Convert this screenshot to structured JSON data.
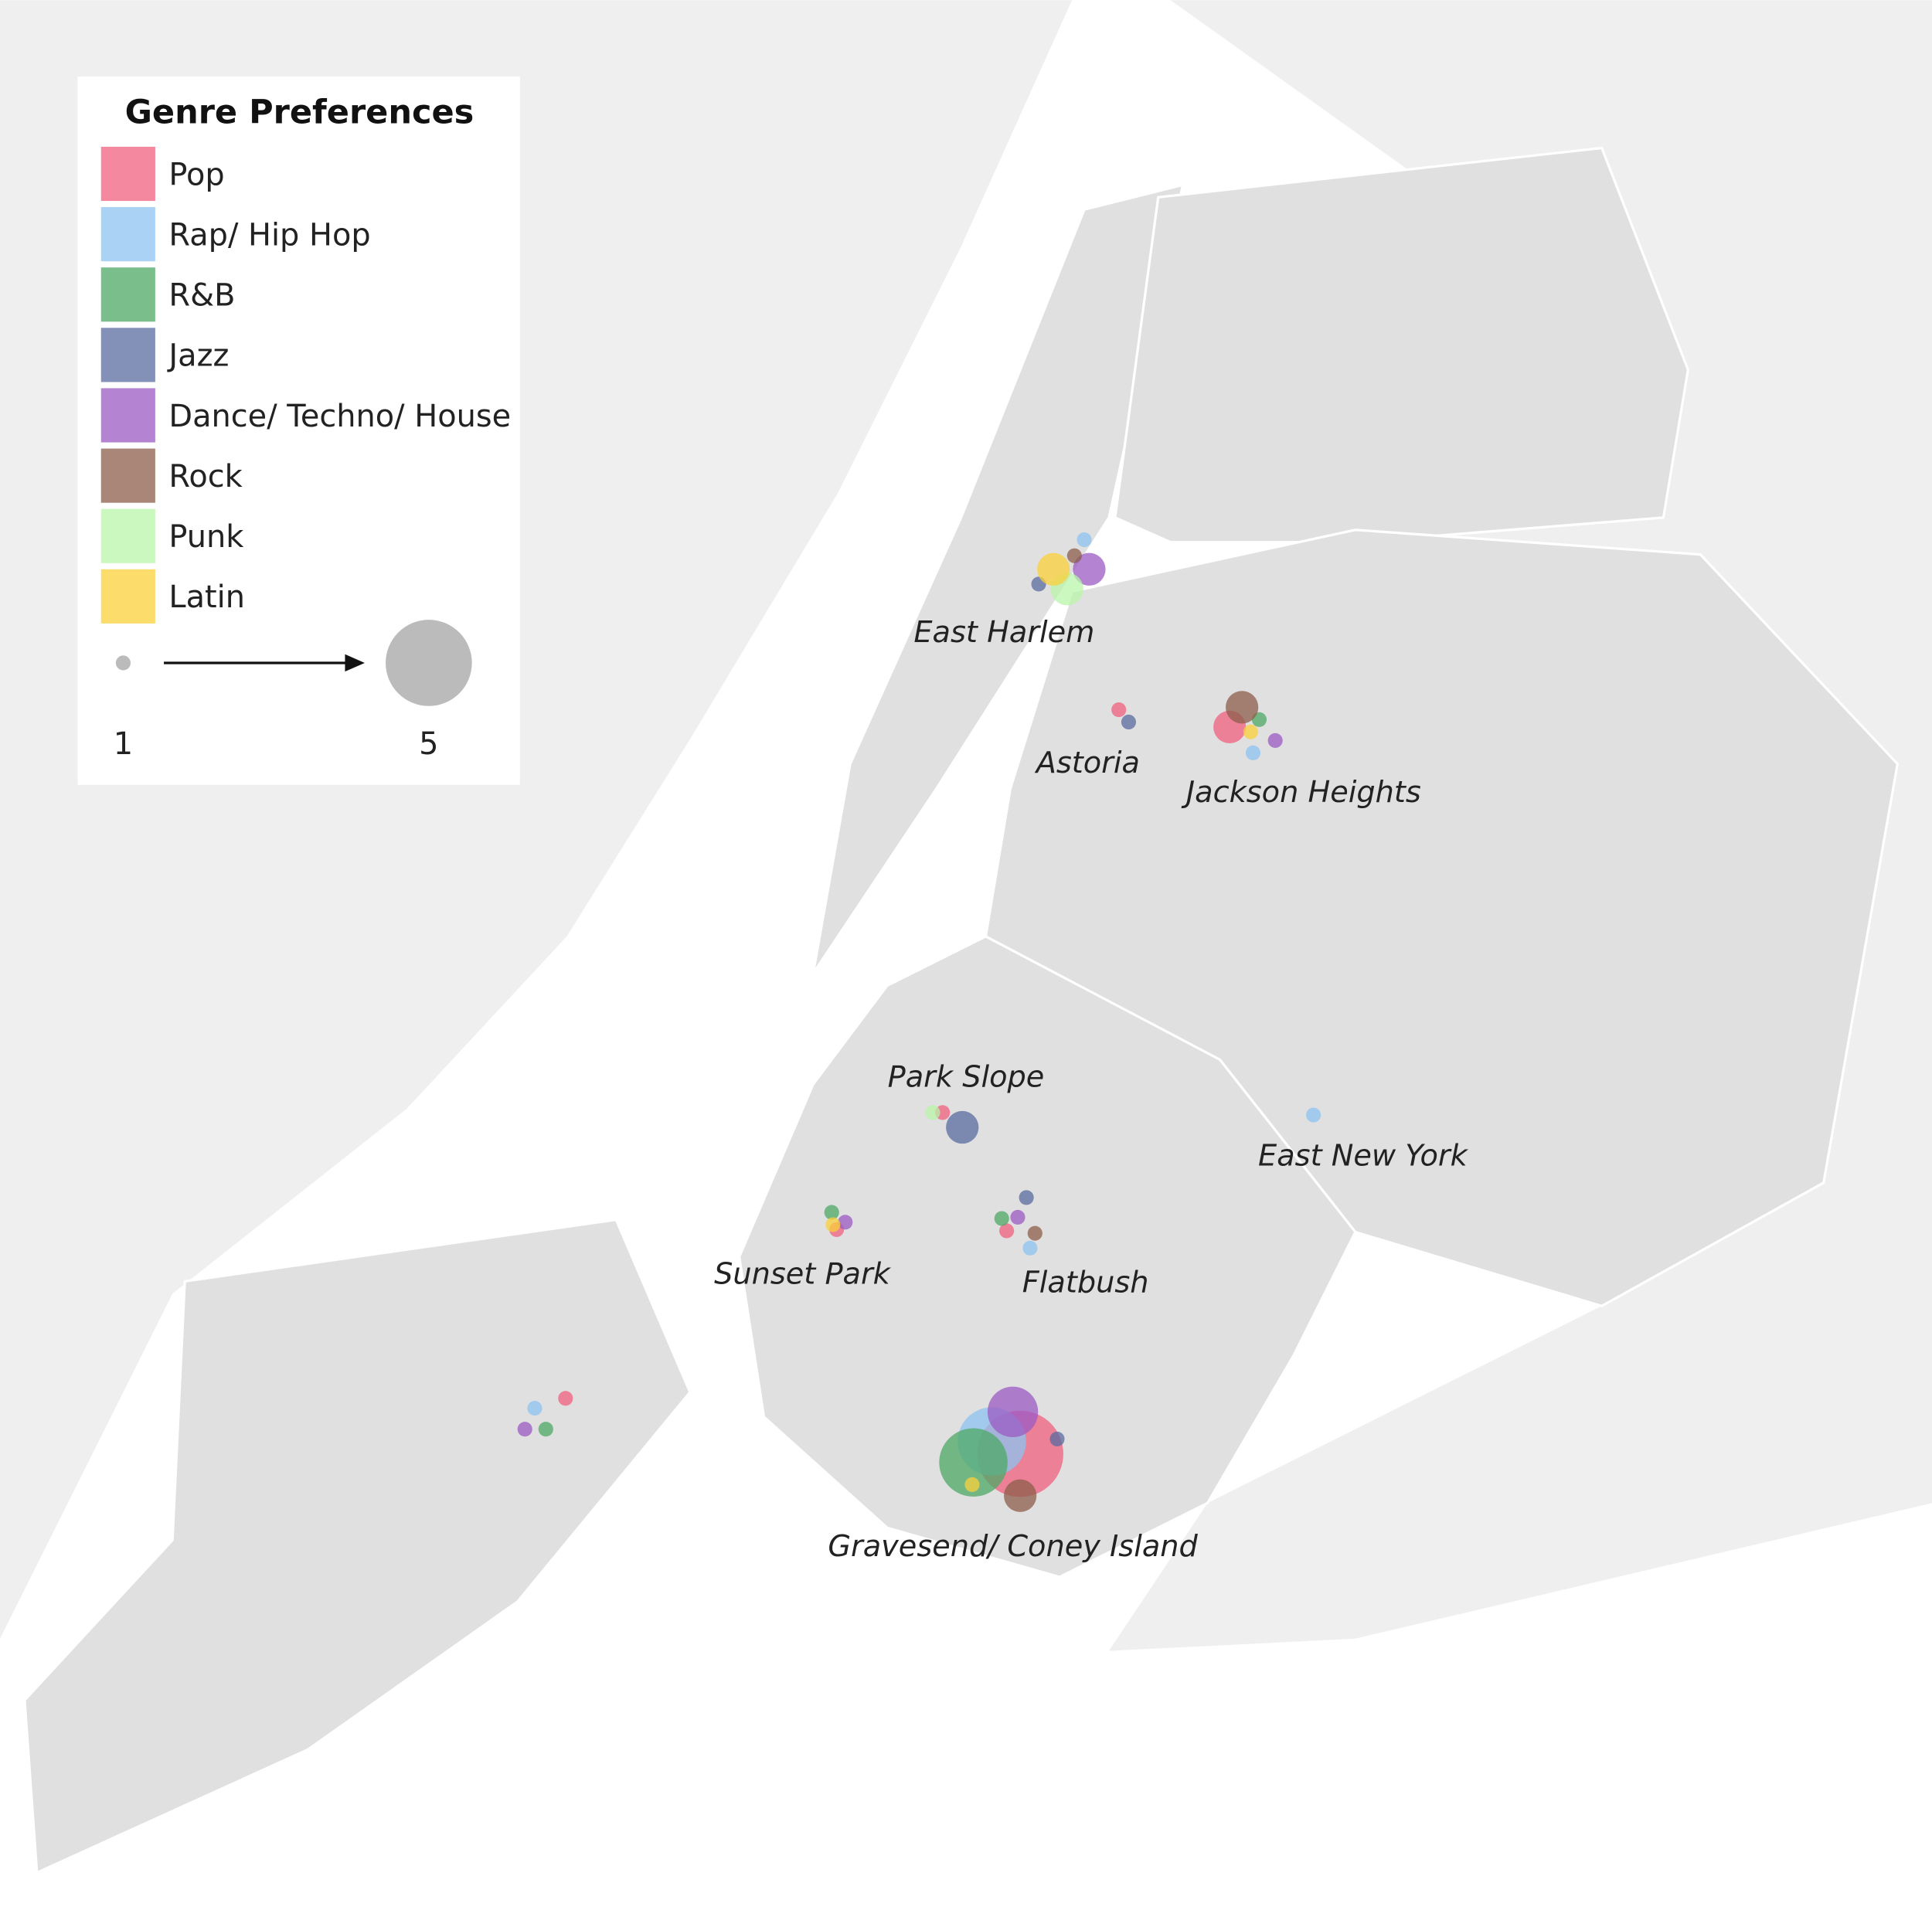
{
  "legend": {
    "title": "Genre Preferences"
  },
  "genres": [
    {
      "name": "Pop",
      "color": "#f0607f"
    },
    {
      "name": "Rap/ Hip Hop",
      "color": "#8ec3f0"
    },
    {
      "name": "R&B",
      "color": "#4da866"
    },
    {
      "name": "Jazz",
      "color": "#5a6ba0"
    },
    {
      "name": "Dance/ Techno/ House",
      "color": "#9b5bc4"
    },
    {
      "name": "Rock",
      "color": "#8c5e4a"
    },
    {
      "name": "Punk",
      "color": "#b8f5a8"
    },
    {
      "name": "Latin",
      "color": "#fbd03a"
    }
  ],
  "size_legend": {
    "min": 1,
    "max": 5
  },
  "neighborhoods": [
    {
      "name": "East Harlem",
      "values": [
        null,
        1,
        null,
        1,
        2,
        1,
        2,
        2
      ]
    },
    {
      "name": "Astoria",
      "values": [
        1,
        null,
        null,
        1,
        null,
        null,
        null,
        null
      ]
    },
    {
      "name": "Jackson Heights",
      "values": [
        2,
        1,
        1,
        null,
        1,
        2,
        null,
        1
      ]
    },
    {
      "name": "Park Slope",
      "values": [
        1,
        null,
        null,
        2,
        null,
        null,
        1,
        null
      ]
    },
    {
      "name": "Sunset Park",
      "values": [
        1,
        null,
        1,
        null,
        1,
        null,
        null,
        1
      ]
    },
    {
      "name": "Flatbush",
      "values": [
        1,
        1,
        1,
        1,
        1,
        1,
        null,
        null
      ]
    },
    {
      "name": "East New York",
      "values": [
        null,
        1,
        null,
        null,
        null,
        null,
        null,
        null
      ]
    },
    {
      "name": "Gravesend/ Coney Island",
      "values": [
        5,
        4,
        4,
        1,
        3,
        2,
        null,
        1
      ]
    },
    {
      "name": null,
      "values": [
        1,
        1,
        1,
        null,
        1,
        null,
        null,
        null
      ]
    }
  ]
}
